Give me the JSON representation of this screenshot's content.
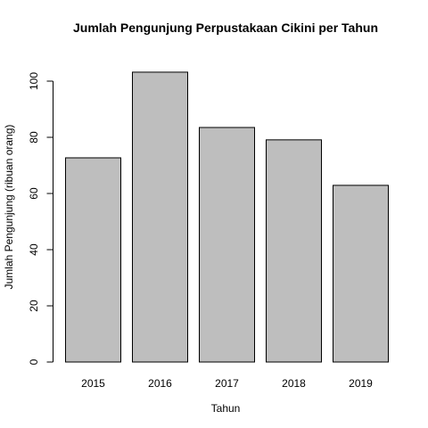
{
  "chart_data": {
    "type": "bar",
    "title": "Jumlah Pengunjung Perpustakaan Cikini per Tahun",
    "xlabel": "Tahun",
    "ylabel": "Jumlah Pengunjung (ribuan orang)",
    "categories": [
      "2015",
      "2016",
      "2017",
      "2018",
      "2019"
    ],
    "values": [
      72.7,
      103.2,
      83.5,
      79.1,
      62.9
    ],
    "ylim": [
      0,
      110
    ],
    "yticks": [
      0,
      20,
      40,
      60,
      80,
      100
    ],
    "ytick_labels": [
      "0",
      "20",
      "40",
      "60",
      "80",
      "100"
    ],
    "grid": false,
    "bar_color": "#bebebe",
    "bar_edge_color": "#000000"
  }
}
